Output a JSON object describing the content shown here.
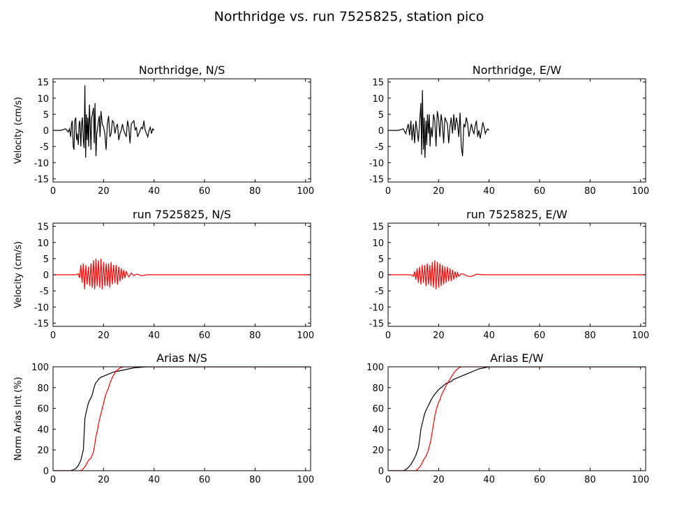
{
  "figure_title": "Northridge vs. run 7525825, station pico",
  "colors": {
    "observed": "#000000",
    "simulated": "#ff0000"
  },
  "chart_data": [
    {
      "type": "line",
      "title": "Northridge, N/S",
      "ylabel": "Velocity (cm/s)",
      "xlim": [
        0,
        102
      ],
      "ylim": [
        -16,
        16
      ],
      "xticks": [
        "0",
        "20",
        "40",
        "60",
        "80",
        "100"
      ],
      "yticks": [
        "15",
        "10",
        "5",
        "0",
        "-5",
        "-10",
        "-15"
      ],
      "series": [
        {
          "color": "#000000",
          "x": [
            0,
            3,
            5,
            6,
            6.5,
            7,
            7.3,
            7.6,
            8,
            8.3,
            8.6,
            9,
            9.3,
            9.6,
            10,
            10.3,
            10.6,
            11,
            11.3,
            11.6,
            12,
            12.3,
            12.6,
            12.9,
            13.2,
            13.5,
            13.8,
            14.1,
            14.4,
            14.7,
            15,
            15.3,
            15.6,
            16,
            16.3,
            16.6,
            17,
            17.3,
            17.6,
            18,
            18.3,
            18.6,
            19,
            19.5,
            20,
            20.5,
            21,
            21.5,
            22,
            22.5,
            23,
            23.5,
            24,
            24.5,
            25,
            25.5,
            26,
            26.5,
            27,
            27.5,
            28,
            28.5,
            29,
            29.5,
            30,
            30.5,
            31,
            31.5,
            32,
            32.5,
            33,
            33.5,
            34,
            34.5,
            35,
            35.5,
            36,
            36.5,
            37,
            37.5,
            38,
            38.5,
            39,
            39.5,
            40
          ],
          "y": [
            0,
            0,
            0.5,
            -0.5,
            0.5,
            -2,
            2,
            3,
            -5,
            -6,
            3,
            4,
            -3,
            -1,
            -4.5,
            2,
            3,
            -5,
            2,
            4,
            -3,
            -5.5,
            14,
            -8.5,
            5,
            -3,
            4,
            -5,
            8,
            2,
            -6,
            4,
            5,
            7,
            -4,
            8.5,
            -8,
            -1,
            0.5,
            3,
            4.5,
            -2,
            6,
            2,
            1,
            -1,
            -6,
            2,
            4.5,
            -2,
            -1,
            3,
            2.5,
            -1,
            1,
            2,
            -3,
            -1,
            0,
            2,
            0,
            -1,
            -2,
            3,
            1,
            -4,
            2,
            2.5,
            3,
            0,
            1,
            -2,
            -1,
            0,
            1,
            0.5,
            3,
            0,
            -1,
            -2,
            0,
            1,
            -1,
            0.5,
            0
          ]
        }
      ]
    },
    {
      "type": "line",
      "title": "Northridge, E/W",
      "ylabel": "",
      "xlim": [
        0,
        102
      ],
      "ylim": [
        -16,
        16
      ],
      "xticks": [
        "0",
        "20",
        "40",
        "60",
        "80",
        "100"
      ],
      "yticks": [
        "15",
        "10",
        "5",
        "0",
        "-5",
        "-10",
        "-15"
      ],
      "series": [
        {
          "color": "#000000",
          "x": [
            0,
            4,
            6,
            7,
            7.5,
            8,
            8.5,
            9,
            9.5,
            10,
            10.5,
            11,
            11.5,
            12,
            12.5,
            13,
            13.3,
            13.6,
            14,
            14.3,
            14.6,
            15,
            15.3,
            15.6,
            16,
            16.3,
            16.6,
            17,
            17.5,
            18,
            18.5,
            19,
            19.5,
            20,
            20.5,
            21,
            21.5,
            22,
            22.5,
            23,
            23.5,
            24,
            24.5,
            25,
            25.5,
            26,
            26.5,
            27,
            27.5,
            28,
            28.5,
            29,
            29.5,
            30,
            30.5,
            31,
            31.5,
            32,
            32.5,
            33,
            33.5,
            34,
            34.5,
            35,
            35.5,
            36,
            36.5,
            37,
            37.5,
            38,
            38.5,
            39,
            39.5,
            40
          ],
          "y": [
            0,
            0,
            0.5,
            -1,
            0.5,
            2,
            -1.5,
            3,
            -3,
            2,
            -4,
            3,
            0,
            -3.5,
            2.5,
            8.5,
            -7.5,
            12.5,
            -6,
            4,
            -8.5,
            3,
            -4.5,
            5,
            -1,
            5,
            -5,
            1,
            -2,
            5,
            3,
            -5,
            6,
            3.5,
            -2,
            5,
            2,
            -4,
            4,
            3,
            2,
            -4,
            1,
            4,
            -1,
            5,
            0,
            4,
            2,
            -2,
            5.5,
            -5,
            -8,
            2,
            1,
            4,
            2,
            -2,
            0,
            2,
            0,
            -1,
            1.5,
            3,
            -2,
            0,
            -2.5,
            0,
            2.5,
            1,
            -1,
            0,
            0.5,
            0
          ]
        }
      ]
    },
    {
      "type": "line",
      "title": "run 7525825, N/S",
      "ylabel": "Velocity (cm/s)",
      "xlim": [
        0,
        102
      ],
      "ylim": [
        -16,
        16
      ],
      "xticks": [
        "0",
        "20",
        "40",
        "60",
        "80",
        "100"
      ],
      "yticks": [
        "15",
        "10",
        "5",
        "0",
        "-5",
        "-10",
        "-15"
      ],
      "series": [
        {
          "color": "#ff0000",
          "x": [
            0,
            9,
            10,
            10.5,
            11,
            11.5,
            12,
            12.5,
            13,
            13.5,
            14,
            14.5,
            15,
            15.5,
            16,
            16.5,
            17,
            17.5,
            18,
            18.5,
            19,
            19.5,
            20,
            20.5,
            21,
            21.5,
            22,
            22.5,
            23,
            23.5,
            24,
            24.5,
            25,
            25.5,
            26,
            26.5,
            27,
            27.5,
            28,
            28.5,
            29,
            30,
            31,
            32,
            33,
            34,
            35,
            36,
            37,
            38,
            40,
            60,
            80,
            100,
            102
          ],
          "y": [
            0,
            0,
            0.3,
            -1,
            3,
            -2.5,
            3.5,
            -4.5,
            3,
            -3,
            2.5,
            -3.5,
            3.5,
            -4,
            4.5,
            -4.5,
            5,
            -3.5,
            4.5,
            -4,
            5,
            -4.5,
            4,
            -3.5,
            3.5,
            -3.5,
            3.5,
            -4,
            4,
            -3,
            3,
            -2.5,
            3,
            -3,
            2.5,
            -2,
            2,
            -1.5,
            1.5,
            -1,
            1,
            -0.7,
            0.5,
            -0.3,
            0.2,
            0,
            -0.3,
            -0.2,
            0,
            0,
            0,
            0,
            0,
            0,
            0
          ]
        }
      ]
    },
    {
      "type": "line",
      "title": "run 7525825, E/W",
      "ylabel": "",
      "xlim": [
        0,
        102
      ],
      "ylim": [
        -16,
        16
      ],
      "xticks": [
        "0",
        "20",
        "40",
        "60",
        "80",
        "100"
      ],
      "yticks": [
        "15",
        "10",
        "5",
        "0",
        "-5",
        "-10",
        "-15"
      ],
      "series": [
        {
          "color": "#ff0000",
          "x": [
            0,
            9,
            10,
            10.5,
            11,
            11.5,
            12,
            12.5,
            13,
            13.5,
            14,
            14.5,
            15,
            15.5,
            16,
            16.5,
            17,
            17.5,
            18,
            18.5,
            19,
            19.5,
            20,
            20.5,
            21,
            21.5,
            22,
            22.5,
            23,
            23.5,
            24,
            24.5,
            25,
            25.5,
            26,
            26.5,
            27,
            27.5,
            28,
            29,
            30,
            31,
            32,
            33,
            34,
            35,
            36,
            38,
            40,
            60,
            80,
            100,
            102
          ],
          "y": [
            0,
            0,
            -0.5,
            1,
            -1.5,
            2,
            -2.5,
            2.5,
            -3,
            3,
            -2.5,
            3,
            -3.5,
            3.5,
            -3,
            3,
            -3.5,
            4,
            -4,
            4.5,
            -4.5,
            4,
            -4,
            3.5,
            -3.5,
            3,
            -3,
            2.5,
            -2.5,
            2.5,
            -2,
            2,
            -2,
            1.5,
            -1.5,
            1,
            -1,
            0.7,
            -0.5,
            0.3,
            0.2,
            -0.3,
            -0.5,
            -0.5,
            -0.2,
            0.2,
            0.1,
            0,
            0,
            0,
            0,
            0,
            0
          ]
        }
      ]
    },
    {
      "type": "line",
      "title": "Arias N/S",
      "ylabel": "Norm Arias Int (%)",
      "xlim": [
        0,
        102
      ],
      "ylim": [
        0,
        100
      ],
      "xticks": [
        "0",
        "20",
        "40",
        "60",
        "80",
        "100"
      ],
      "yticks": [
        "100",
        "80",
        "60",
        "40",
        "20",
        "0"
      ],
      "series": [
        {
          "color": "#000000",
          "x": [
            0,
            7,
            8,
            9,
            10,
            11,
            11.5,
            12,
            12.3,
            12.6,
            13,
            13.5,
            14,
            14.5,
            15,
            15.5,
            16,
            16.5,
            17,
            17.5,
            18,
            19,
            20,
            21,
            22,
            24,
            26,
            28,
            30,
            32,
            35,
            37,
            40,
            102
          ],
          "y": [
            0,
            0,
            1,
            2,
            5,
            10,
            15,
            20,
            35,
            50,
            55,
            60,
            65,
            68,
            70,
            73,
            78,
            82,
            85,
            86,
            88,
            90,
            91,
            92,
            93,
            95,
            96,
            97,
            98,
            99,
            99.5,
            100,
            100,
            100
          ]
        },
        {
          "color": "#ff0000",
          "x": [
            0,
            11,
            12,
            13,
            14,
            15,
            16,
            16.5,
            17,
            17.5,
            18,
            18.5,
            19,
            19.5,
            20,
            20.5,
            21,
            21.5,
            22,
            22.5,
            23,
            23.5,
            24,
            24.5,
            25,
            26,
            27,
            28,
            29,
            102
          ],
          "y": [
            0,
            0,
            2,
            5,
            10,
            12,
            18,
            25,
            33,
            38,
            45,
            50,
            55,
            60,
            65,
            70,
            74,
            77,
            80,
            84,
            87,
            90,
            92,
            94,
            96,
            98,
            99.5,
            100,
            100,
            100
          ]
        }
      ]
    },
    {
      "type": "line",
      "title": "Arias E/W",
      "ylabel": "",
      "xlim": [
        0,
        102
      ],
      "ylim": [
        0,
        100
      ],
      "xticks": [
        "0",
        "20",
        "40",
        "60",
        "80",
        "100"
      ],
      "yticks": [
        "100",
        "80",
        "60",
        "40",
        "20",
        "0"
      ],
      "series": [
        {
          "color": "#000000",
          "x": [
            0,
            6,
            7,
            8,
            9,
            10,
            11,
            12,
            12.5,
            13,
            13.5,
            14,
            14.5,
            15,
            16,
            17,
            18,
            19,
            20,
            21,
            22,
            23,
            24,
            25,
            26,
            27,
            28,
            29,
            30,
            32,
            34,
            36,
            38,
            40,
            102
          ],
          "y": [
            0,
            0,
            1,
            3,
            6,
            10,
            15,
            22,
            30,
            40,
            45,
            50,
            55,
            58,
            63,
            68,
            72,
            75,
            78,
            80,
            82,
            84,
            85,
            86,
            88,
            89,
            90,
            91,
            92,
            94,
            96,
            98,
            99,
            100,
            100
          ]
        },
        {
          "color": "#ff0000",
          "x": [
            0,
            11,
            12,
            13,
            14,
            15,
            16,
            17,
            17.5,
            18,
            18.5,
            19,
            19.5,
            20,
            20.5,
            21,
            22,
            23,
            24,
            25,
            26,
            27,
            28,
            29,
            102
          ],
          "y": [
            0,
            0,
            2,
            5,
            10,
            14,
            20,
            30,
            38,
            45,
            52,
            58,
            62,
            66,
            68,
            72,
            77,
            82,
            86,
            90,
            94,
            97,
            99,
            100,
            100
          ]
        }
      ]
    }
  ]
}
